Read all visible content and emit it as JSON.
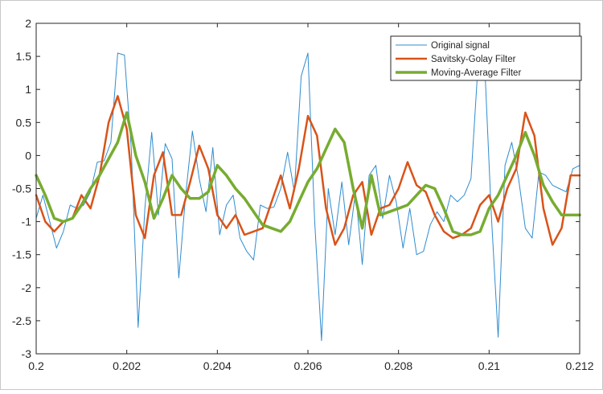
{
  "chart_data": {
    "type": "line",
    "title": "",
    "xlabel": "",
    "ylabel": "",
    "xlim": [
      0.2,
      0.212
    ],
    "ylim": [
      -3,
      2
    ],
    "x_ticks": [
      0.2,
      0.202,
      0.204,
      0.206,
      0.208,
      0.21,
      0.212
    ],
    "x_tick_labels": [
      "0.2",
      "0.202",
      "0.204",
      "0.206",
      "0.208",
      "0.21",
      "0.212"
    ],
    "y_ticks": [
      -3,
      -2.5,
      -2,
      -1.5,
      -1,
      -0.5,
      0,
      0.5,
      1,
      1.5,
      2
    ],
    "y_tick_labels": [
      "-3",
      "-2.5",
      "-2",
      "-1.5",
      "-1",
      "-0.5",
      "0",
      "0.5",
      "1",
      "1.5",
      "2"
    ],
    "grid": false,
    "legend_position": "top-right",
    "series": [
      {
        "name": "Original signal",
        "color": "#2f8ccf",
        "width": 1,
        "x": [
          0.2,
          0.20015,
          0.2003,
          0.20045,
          0.2006,
          0.20075,
          0.2009,
          0.20105,
          0.2012,
          0.20135,
          0.2015,
          0.20165,
          0.2018,
          0.20195,
          0.2021,
          0.20225,
          0.2024,
          0.20255,
          0.2027,
          0.20285,
          0.203,
          0.20315,
          0.2033,
          0.20345,
          0.2036,
          0.20375,
          0.2039,
          0.20405,
          0.2042,
          0.20435,
          0.2045,
          0.20465,
          0.2048,
          0.20495,
          0.2051,
          0.20525,
          0.2054,
          0.20555,
          0.2057,
          0.20585,
          0.206,
          0.20615,
          0.2063,
          0.20645,
          0.2066,
          0.20675,
          0.2069,
          0.20705,
          0.2072,
          0.20735,
          0.2075,
          0.20765,
          0.2078,
          0.20795,
          0.2081,
          0.20825,
          0.2084,
          0.20855,
          0.2087,
          0.20885,
          0.209,
          0.20915,
          0.2093,
          0.20945,
          0.2096,
          0.20975,
          0.2099,
          0.21005,
          0.2102,
          0.21035,
          0.2105,
          0.21065,
          0.2108,
          0.21095,
          0.2111,
          0.21125,
          0.2114,
          0.21155,
          0.2117,
          0.21185,
          0.212
        ],
        "y": [
          -0.95,
          -0.6,
          -1.0,
          -1.4,
          -1.15,
          -0.75,
          -0.8,
          -0.75,
          -0.55,
          -0.1,
          -0.08,
          0.2,
          1.55,
          1.52,
          0.1,
          -2.6,
          -0.8,
          0.35,
          -0.9,
          0.18,
          -0.05,
          -1.85,
          -0.6,
          0.37,
          -0.35,
          -0.85,
          0.12,
          -1.2,
          -0.75,
          -0.6,
          -1.25,
          -1.45,
          -1.58,
          -0.75,
          -0.8,
          -0.78,
          -0.5,
          0.05,
          -0.55,
          1.2,
          1.55,
          -1.0,
          -2.8,
          -0.5,
          -1.2,
          -0.4,
          -1.35,
          -0.55,
          -1.65,
          -0.3,
          -0.15,
          -0.95,
          -0.3,
          -0.7,
          -1.4,
          -0.8,
          -1.5,
          -1.45,
          -1.05,
          -0.85,
          -1.0,
          -0.6,
          -0.7,
          -0.6,
          -0.35,
          1.3,
          1.42,
          -0.9,
          -2.75,
          -0.15,
          0.2,
          -0.35,
          -1.1,
          -1.25,
          -0.25,
          -0.3,
          -0.45,
          -0.5,
          -0.55,
          -0.2,
          -0.15
        ]
      },
      {
        "name": "Savitsky-Golay Filter",
        "color": "#d95319",
        "width": 2.5,
        "x": [
          0.2,
          0.2002,
          0.2004,
          0.2006,
          0.2008,
          0.201,
          0.2012,
          0.2014,
          0.2016,
          0.2018,
          0.202,
          0.2022,
          0.2024,
          0.2026,
          0.2028,
          0.203,
          0.2032,
          0.2034,
          0.2036,
          0.2038,
          0.204,
          0.2042,
          0.2044,
          0.2046,
          0.2048,
          0.205,
          0.2052,
          0.2054,
          0.2056,
          0.2058,
          0.206,
          0.2062,
          0.2064,
          0.2066,
          0.2068,
          0.207,
          0.2072,
          0.2074,
          0.2076,
          0.2078,
          0.208,
          0.2082,
          0.2084,
          0.2086,
          0.2088,
          0.209,
          0.2092,
          0.2094,
          0.2096,
          0.2098,
          0.21,
          0.2102,
          0.2104,
          0.2106,
          0.2108,
          0.211,
          0.2112,
          0.2114,
          0.2116,
          0.2118,
          0.212
        ],
        "y": [
          -0.6,
          -1.0,
          -1.15,
          -1.0,
          -0.95,
          -0.6,
          -0.8,
          -0.3,
          0.5,
          0.9,
          0.4,
          -0.9,
          -1.25,
          -0.3,
          0.05,
          -0.9,
          -0.9,
          -0.4,
          0.15,
          -0.2,
          -0.9,
          -1.1,
          -0.9,
          -1.2,
          -1.15,
          -1.1,
          -0.7,
          -0.3,
          -0.8,
          -0.2,
          0.6,
          0.3,
          -0.8,
          -1.35,
          -1.1,
          -0.6,
          -0.4,
          -1.2,
          -0.8,
          -0.75,
          -0.5,
          -0.1,
          -0.45,
          -0.55,
          -0.9,
          -1.15,
          -1.25,
          -1.2,
          -1.1,
          -0.75,
          -0.6,
          -1.0,
          -0.5,
          -0.2,
          0.65,
          0.3,
          -0.8,
          -1.35,
          -1.1,
          -0.3,
          -0.3
        ]
      },
      {
        "name": "Moving-Average Filter",
        "color": "#77ac30",
        "width": 3.5,
        "x": [
          0.2,
          0.2002,
          0.2004,
          0.2006,
          0.2008,
          0.201,
          0.2012,
          0.2014,
          0.2016,
          0.2018,
          0.202,
          0.2022,
          0.2024,
          0.2026,
          0.2028,
          0.203,
          0.2032,
          0.2034,
          0.2036,
          0.2038,
          0.204,
          0.2042,
          0.2044,
          0.2046,
          0.2048,
          0.205,
          0.2052,
          0.2054,
          0.2056,
          0.2058,
          0.206,
          0.2062,
          0.2064,
          0.2066,
          0.2068,
          0.207,
          0.2072,
          0.2074,
          0.2076,
          0.2078,
          0.208,
          0.2082,
          0.2084,
          0.2086,
          0.2088,
          0.209,
          0.2092,
          0.2094,
          0.2096,
          0.2098,
          0.21,
          0.2102,
          0.2104,
          0.2106,
          0.2108,
          0.211,
          0.2112,
          0.2114,
          0.2116,
          0.2118,
          0.212
        ],
        "y": [
          -0.3,
          -0.6,
          -0.95,
          -1.0,
          -0.95,
          -0.75,
          -0.5,
          -0.3,
          -0.05,
          0.2,
          0.65,
          0.0,
          -0.4,
          -0.95,
          -0.65,
          -0.3,
          -0.5,
          -0.65,
          -0.65,
          -0.55,
          -0.15,
          -0.3,
          -0.5,
          -0.65,
          -0.85,
          -1.05,
          -1.1,
          -1.15,
          -1.0,
          -0.7,
          -0.4,
          -0.2,
          0.1,
          0.4,
          0.2,
          -0.5,
          -1.1,
          -0.3,
          -0.9,
          -0.85,
          -0.8,
          -0.75,
          -0.6,
          -0.45,
          -0.5,
          -0.8,
          -1.15,
          -1.2,
          -1.2,
          -1.15,
          -0.8,
          -0.6,
          -0.3,
          0.0,
          0.35,
          0.0,
          -0.45,
          -0.7,
          -0.9,
          -0.9,
          -0.9
        ]
      }
    ]
  }
}
